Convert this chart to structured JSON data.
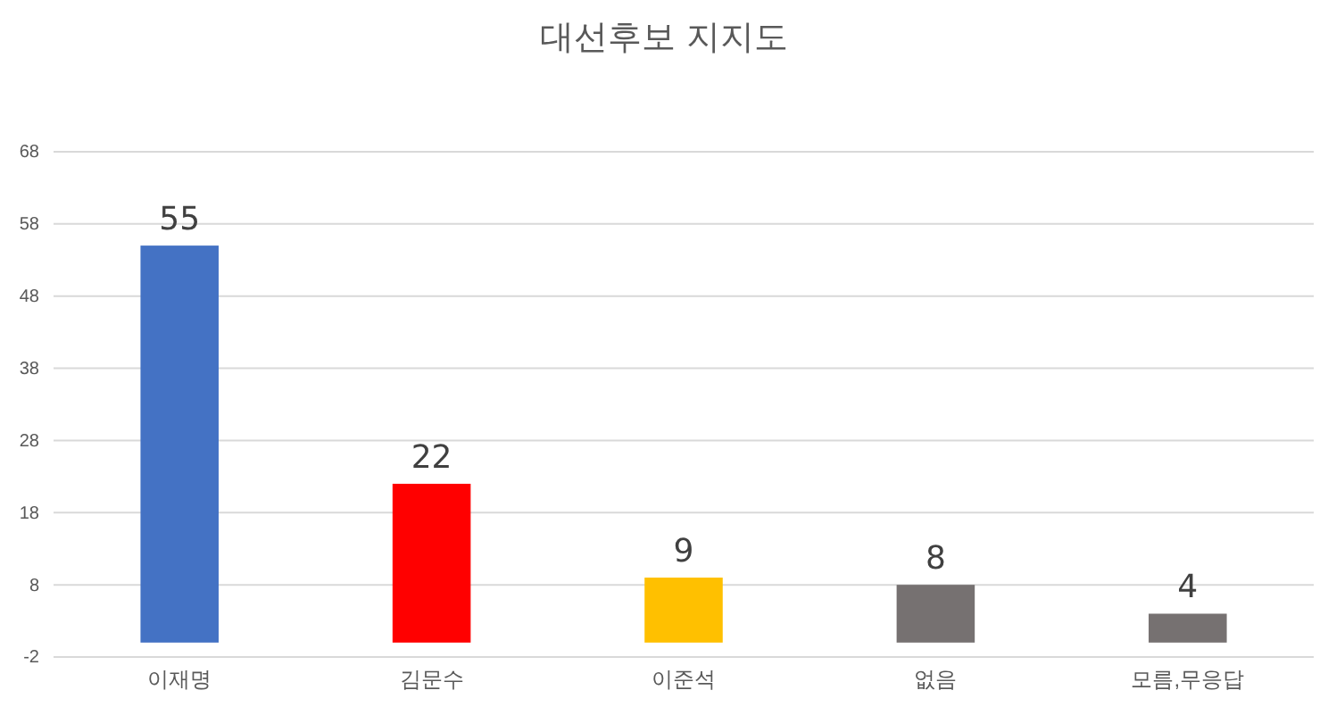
{
  "chart_data": {
    "type": "bar",
    "title": "대선후보 지지도",
    "categories": [
      "이재명",
      "김문수",
      "이준석",
      "없음",
      "모름,무응답"
    ],
    "values": [
      55,
      22,
      9,
      8,
      4
    ],
    "colors": [
      "#4472c4",
      "#ff0000",
      "#ffc000",
      "#767171",
      "#767171"
    ],
    "ylim": [
      -2,
      68
    ],
    "yticks": [
      -2,
      8,
      18,
      28,
      38,
      48,
      58,
      68
    ],
    "grid": "y",
    "data_labels": true
  }
}
